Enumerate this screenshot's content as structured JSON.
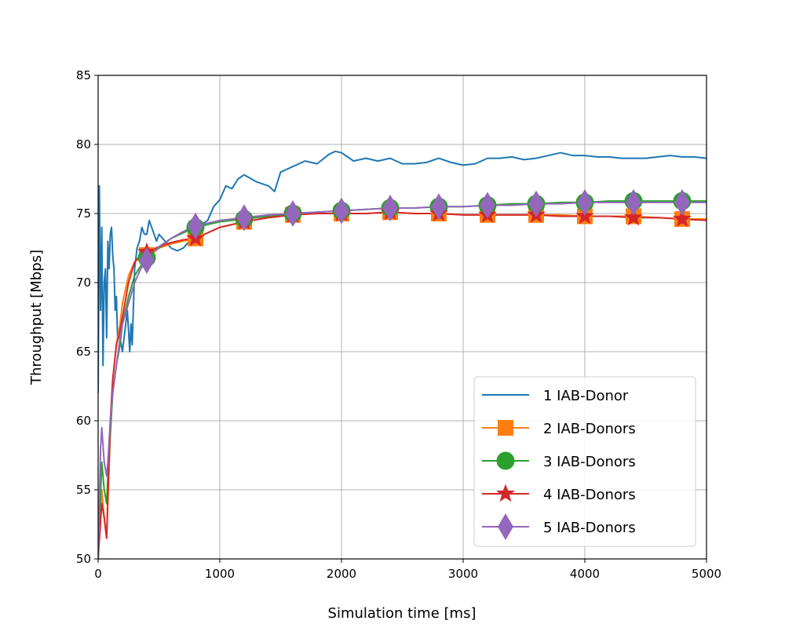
{
  "chart_data": {
    "type": "line",
    "title": "",
    "xlabel": "Simulation time [ms]",
    "ylabel": "Throughput [Mbps]",
    "xlim": [
      0,
      5000
    ],
    "ylim": [
      50,
      85
    ],
    "xticks": [
      0,
      1000,
      2000,
      3000,
      4000,
      5000
    ],
    "yticks": [
      50,
      55,
      60,
      65,
      70,
      75,
      80,
      85
    ],
    "grid": true,
    "legend_position": "lower-right",
    "series": [
      {
        "name": "1 IAB-Donor",
        "color": "#1f77b4",
        "marker": "none",
        "x": [
          0,
          10,
          20,
          30,
          40,
          50,
          60,
          70,
          80,
          90,
          100,
          110,
          120,
          130,
          140,
          150,
          160,
          180,
          200,
          220,
          240,
          260,
          270,
          280,
          300,
          320,
          340,
          360,
          380,
          400,
          420,
          440,
          460,
          480,
          500,
          550,
          600,
          650,
          700,
          750,
          800,
          850,
          900,
          950,
          1000,
          1050,
          1100,
          1150,
          1200,
          1300,
          1400,
          1450,
          1500,
          1600,
          1700,
          1800,
          1900,
          1950,
          2000,
          2100,
          2200,
          2300,
          2400,
          2500,
          2600,
          2700,
          2800,
          2900,
          3000,
          3100,
          3200,
          3300,
          3400,
          3500,
          3600,
          3700,
          3800,
          3900,
          4000,
          4100,
          4200,
          4300,
          4400,
          4500,
          4600,
          4700,
          4800,
          4900,
          5000
        ],
        "values": [
          62,
          77,
          68,
          74,
          64,
          70,
          71,
          66,
          73,
          71,
          73.5,
          74,
          72,
          71,
          68,
          69,
          66,
          66,
          65,
          66.5,
          68,
          65,
          67,
          65.5,
          71,
          72.5,
          73,
          74,
          73.5,
          73.5,
          74.5,
          74,
          73.5,
          73,
          73.5,
          73,
          72.5,
          72.3,
          72.5,
          73,
          73,
          74.2,
          74.5,
          75.5,
          76,
          77,
          76.8,
          77.5,
          77.8,
          77.3,
          77,
          76.6,
          78,
          78.4,
          78.8,
          78.6,
          79.3,
          79.5,
          79.4,
          78.8,
          79,
          78.8,
          79,
          78.6,
          78.6,
          78.7,
          79,
          78.7,
          78.5,
          78.6,
          79,
          79,
          79.1,
          78.9,
          79,
          79.2,
          79.4,
          79.2,
          79.2,
          79.1,
          79.1,
          79,
          79,
          79,
          79.1,
          79.2,
          79.1,
          79.1,
          79
        ]
      },
      {
        "name": "2 IAB-Donors",
        "color": "#ff7f0e",
        "marker": "square",
        "x": [
          0,
          30,
          50,
          70,
          80,
          100,
          120,
          150,
          180,
          200,
          250,
          300,
          350,
          400,
          500,
          600,
          700,
          800,
          900,
          1000,
          1200,
          1400,
          1600,
          1800,
          2000,
          2200,
          2400,
          2600,
          2800,
          3000,
          3200,
          3400,
          3600,
          3800,
          4000,
          4200,
          4400,
          4600,
          4800,
          5000
        ],
        "values": [
          50,
          55,
          53,
          51.5,
          54,
          59,
          63,
          65.5,
          67,
          68.5,
          70.5,
          71.5,
          71.8,
          72,
          72.5,
          72.8,
          73,
          73.2,
          73.6,
          74,
          74.4,
          74.7,
          74.9,
          75,
          75,
          75,
          75.1,
          75,
          75,
          74.9,
          74.9,
          74.9,
          74.9,
          74.9,
          74.8,
          74.8,
          74.8,
          74.7,
          74.6,
          74.6
        ],
        "marker_x": [
          400,
          800,
          1200,
          1600,
          2000,
          2400,
          2800,
          3200,
          3600,
          4000,
          4400,
          4800
        ]
      },
      {
        "name": "3 IAB-Donors",
        "color": "#2ca02c",
        "marker": "circle",
        "x": [
          0,
          30,
          50,
          70,
          80,
          100,
          120,
          150,
          180,
          200,
          250,
          300,
          350,
          400,
          500,
          600,
          700,
          800,
          900,
          1000,
          1200,
          1400,
          1600,
          1800,
          2000,
          2200,
          2400,
          2600,
          2800,
          3000,
          3200,
          3400,
          3600,
          3800,
          4000,
          4200,
          4400,
          4600,
          4800,
          5000
        ],
        "values": [
          50,
          57,
          55,
          54,
          56,
          59,
          62,
          64,
          65.5,
          67,
          69,
          70.5,
          71.2,
          71.8,
          72.5,
          73.2,
          73.6,
          74,
          74.2,
          74.4,
          74.6,
          74.8,
          75,
          75.1,
          75.2,
          75.3,
          75.4,
          75.4,
          75.5,
          75.5,
          75.6,
          75.7,
          75.7,
          75.8,
          75.8,
          75.9,
          75.9,
          75.9,
          75.9,
          75.9
        ],
        "marker_x": [
          400,
          800,
          1200,
          1600,
          2000,
          2400,
          2800,
          3200,
          3600,
          4000,
          4400,
          4800
        ]
      },
      {
        "name": "4 IAB-Donors",
        "color": "#d62728",
        "marker": "star",
        "x": [
          0,
          30,
          50,
          70,
          80,
          100,
          120,
          150,
          180,
          200,
          250,
          300,
          350,
          400,
          500,
          600,
          700,
          800,
          900,
          1000,
          1200,
          1400,
          1600,
          1800,
          2000,
          2200,
          2400,
          2600,
          2800,
          3000,
          3200,
          3400,
          3600,
          3800,
          4000,
          4200,
          4400,
          4600,
          4800,
          5000
        ],
        "values": [
          50,
          54,
          53,
          51.5,
          54.5,
          60,
          63,
          65.5,
          66.5,
          67.5,
          70,
          71.5,
          72,
          72.2,
          72.6,
          72.9,
          73.1,
          73.2,
          73.6,
          74,
          74.4,
          74.7,
          74.9,
          75,
          75,
          75,
          75.1,
          75,
          75,
          74.9,
          74.9,
          74.9,
          74.9,
          74.8,
          74.8,
          74.8,
          74.7,
          74.7,
          74.6,
          74.5
        ],
        "marker_x": [
          400,
          800,
          1200,
          1600,
          2000,
          2400,
          2800,
          3200,
          3600,
          4000,
          4400,
          4800
        ]
      },
      {
        "name": "5 IAB-Donors",
        "color": "#9467bd",
        "marker": "thin-diamond",
        "x": [
          0,
          20,
          30,
          50,
          70,
          80,
          100,
          120,
          150,
          180,
          200,
          250,
          300,
          350,
          400,
          500,
          600,
          700,
          800,
          900,
          1000,
          1200,
          1400,
          1600,
          1800,
          2000,
          2200,
          2400,
          2600,
          2800,
          3000,
          3200,
          3400,
          3600,
          3800,
          4000,
          4200,
          4400,
          4600,
          4800,
          5000
        ],
        "values": [
          50,
          58,
          59.5,
          57,
          56,
          57,
          60,
          62,
          64,
          66,
          67,
          68.5,
          70,
          71,
          71.6,
          72.6,
          73.2,
          73.7,
          74.1,
          74.3,
          74.5,
          74.7,
          74.9,
          75,
          75.1,
          75.2,
          75.3,
          75.4,
          75.4,
          75.5,
          75.5,
          75.6,
          75.6,
          75.7,
          75.7,
          75.8,
          75.8,
          75.8,
          75.8,
          75.8,
          75.8
        ],
        "marker_x": [
          400,
          800,
          1200,
          1600,
          2000,
          2400,
          2800,
          3200,
          3600,
          4000,
          4400,
          4800
        ]
      }
    ]
  }
}
